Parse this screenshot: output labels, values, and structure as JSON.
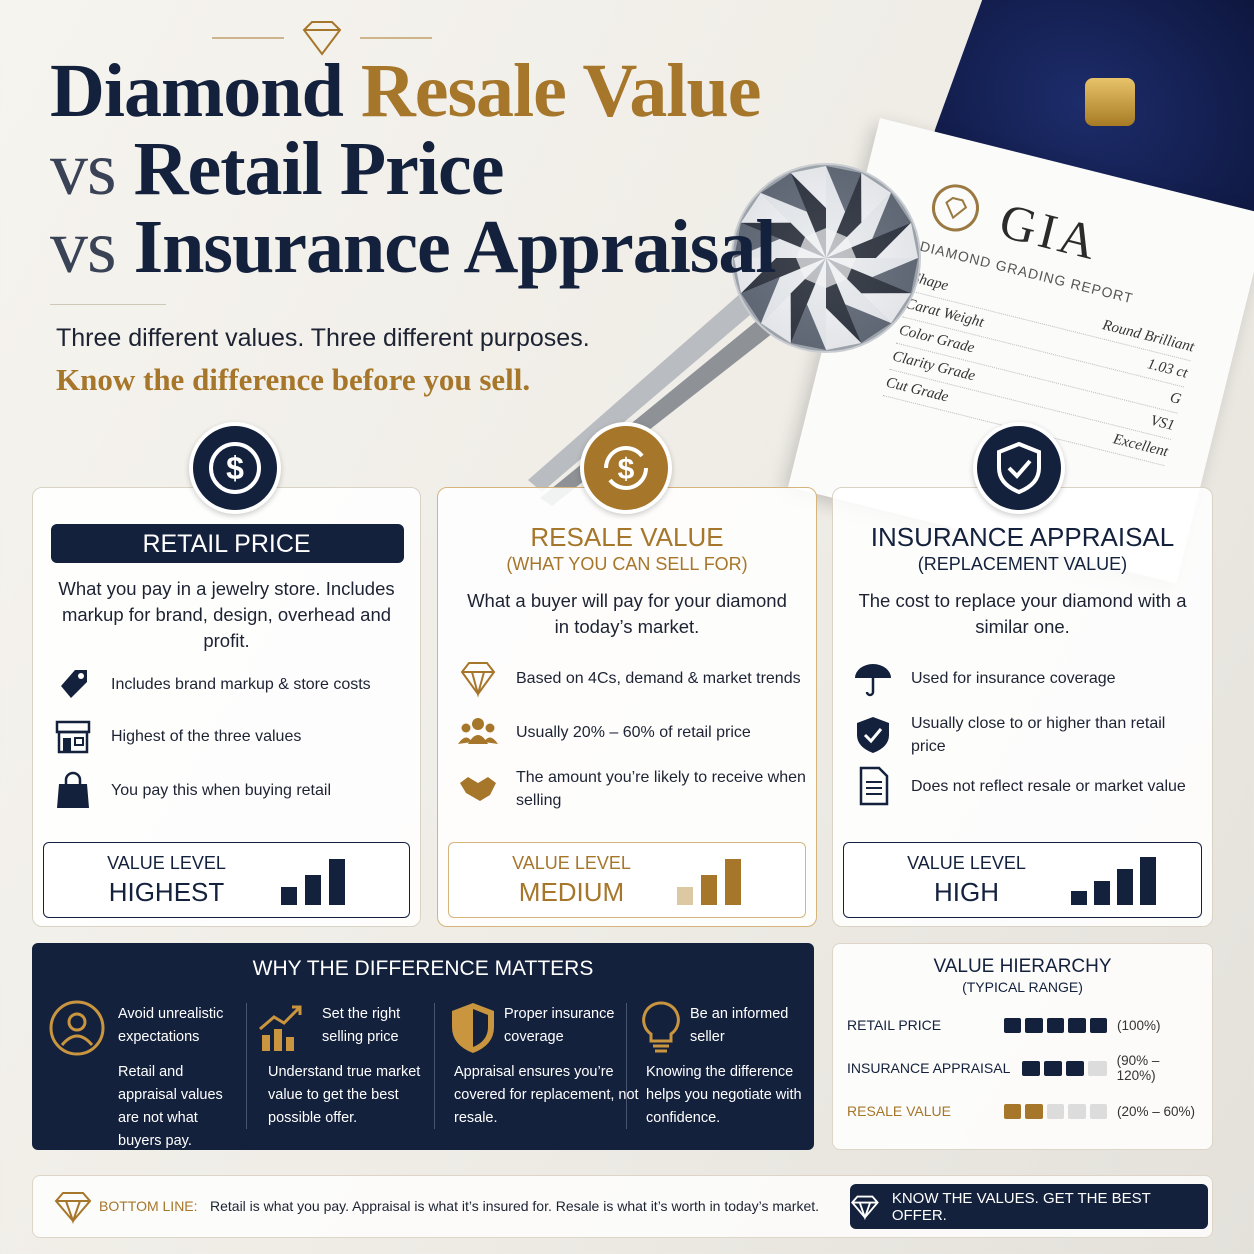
{
  "header": {
    "title": [
      {
        "text": "Diamond",
        "color": "#14213d"
      },
      {
        "text": "Resale Value",
        "color": "#a6762a"
      },
      {
        "text": "vs",
        "color": "#3a4256"
      },
      {
        "text": "Retail Price",
        "color": "#14213d"
      },
      {
        "text": "vs",
        "color": "#3a4256"
      },
      {
        "text": "Insurance Appraisal",
        "color": "#14213d"
      }
    ],
    "subtitle": "Three different values. Three different purposes.",
    "tagline": "Know the difference before you sell."
  },
  "gia_card": {
    "logo": "GIA",
    "report": "DIAMOND GRADING REPORT",
    "rows": [
      [
        "Shape",
        "Round Brilliant"
      ],
      [
        "Carat Weight",
        "1.03 ct"
      ],
      [
        "Color Grade",
        "G"
      ],
      [
        "Clarity Grade",
        "VS1"
      ],
      [
        "Cut Grade",
        "Excellent"
      ]
    ]
  },
  "cards": [
    {
      "title": "RETAIL PRICE",
      "description": "What you pay in a jewelry store. Includes markup for brand, design, overhead and profit.",
      "points": [
        "Includes brand markup & store costs",
        "Highest of the three values",
        "You pay this when buying retail"
      ],
      "level_label": "VALUE LEVEL",
      "level": "HIGHEST"
    },
    {
      "title": "RESALE VALUE",
      "subtitle": "(WHAT YOU CAN SELL FOR)",
      "description": "What a buyer will pay for your diamond in today’s market.",
      "points": [
        "Based on 4Cs, demand & market trends",
        "Usually 20% – 60% of retail price",
        "The amount you’re likely to receive when selling"
      ],
      "level_label": "VALUE LEVEL",
      "level": "MEDIUM"
    },
    {
      "title": "INSURANCE APPRAISAL",
      "subtitle": "(REPLACEMENT VALUE)",
      "description": "The cost to replace your diamond with a similar one.",
      "points": [
        "Used for insurance coverage",
        "Usually close to or higher than retail price",
        "Does not reflect resale or market value"
      ],
      "level_label": "VALUE LEVEL",
      "level": "HIGH"
    }
  ],
  "why": {
    "title": "WHY THE DIFFERENCE MATTERS",
    "items": [
      {
        "heading": "Avoid unrealistic expectations",
        "text": "Retail and appraisal values are not what buyers pay."
      },
      {
        "heading": "Set the right selling price",
        "text": "Understand true market value to get the best possible offer."
      },
      {
        "heading": "Proper insurance coverage",
        "text": "Appraisal ensures you’re covered for replacement, not resale."
      },
      {
        "heading": "Be an informed seller",
        "text": "Knowing the difference helps you negotiate with confidence."
      }
    ]
  },
  "hierarchy": {
    "title": "VALUE HIERARCHY",
    "subtitle": "(TYPICAL RANGE)",
    "rows": [
      {
        "label": "RETAIL PRICE",
        "range": "(100%)",
        "filled": 5,
        "segments": 5,
        "color": "#14213d"
      },
      {
        "label": "INSURANCE APPRAISAL",
        "range": "(90% – 120%)",
        "filled": 3,
        "segments": 4,
        "color": "#14213d"
      },
      {
        "label": "RESALE VALUE",
        "range": "(20% – 60%)",
        "filled": 2,
        "segments": 5,
        "color": "#a6762a"
      }
    ]
  },
  "bottom": {
    "label": "BOTTOM LINE:",
    "text": "Retail is what you pay. Appraisal is what it’s insured for. Resale is what it’s worth in today’s market.",
    "button": "KNOW THE VALUES. GET THE BEST OFFER."
  }
}
